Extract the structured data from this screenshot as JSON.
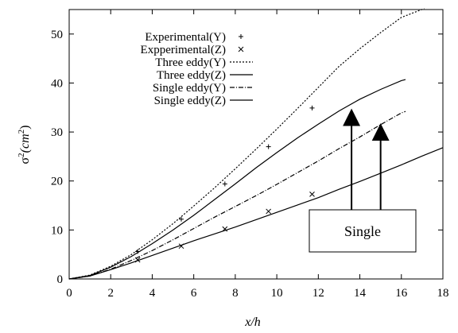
{
  "chart_data": {
    "type": "line",
    "xlabel": "x/h",
    "ylabel": "σ²(cm²)",
    "ylabel_parts": {
      "sigma": "σ",
      "sup1": "2",
      "open": "(cm",
      "sup2": "2",
      "close": ")"
    },
    "xlim": [
      0,
      18
    ],
    "ylim": [
      0,
      55
    ],
    "xticks": [
      0,
      2,
      4,
      6,
      8,
      10,
      12,
      14,
      16,
      18
    ],
    "yticks": [
      0,
      10,
      20,
      30,
      40,
      50
    ],
    "grid": false,
    "legend_position": "top-left",
    "series": [
      {
        "name": "Experimental(Y)",
        "kind": "points",
        "marker": "plus",
        "x": [
          3.3,
          5.4,
          7.5,
          9.6,
          11.7
        ],
        "y": [
          5.6,
          12.2,
          19.4,
          27.0,
          34.9
        ]
      },
      {
        "name": "Expperimental(Z)",
        "kind": "points",
        "marker": "cross",
        "x": [
          3.3,
          5.4,
          7.5,
          9.6,
          11.7
        ],
        "y": [
          3.9,
          6.7,
          10.2,
          13.8,
          17.3
        ]
      },
      {
        "name": "Three eddy(Y)",
        "kind": "line",
        "dash": "2,2",
        "x": [
          0,
          1,
          2,
          3,
          4,
          5,
          6,
          7,
          8,
          9,
          10,
          11,
          12,
          13,
          14,
          15,
          16,
          17.1
        ],
        "y": [
          0,
          0.8,
          2.6,
          5.0,
          8.0,
          11.3,
          14.9,
          18.6,
          22.5,
          26.5,
          30.6,
          34.8,
          39.1,
          43.4,
          47.0,
          50.3,
          53.4,
          55.2
        ]
      },
      {
        "name": "Three eddy(Z)",
        "kind": "line",
        "dash": "",
        "x": [
          0,
          1,
          2,
          3,
          4,
          5,
          6,
          7,
          8,
          9,
          10,
          11,
          12,
          13,
          14,
          15,
          16,
          16.2
        ],
        "y": [
          0,
          0.7,
          2.4,
          4.6,
          7.2,
          10.0,
          13.0,
          16.2,
          19.4,
          22.7,
          25.8,
          28.8,
          31.6,
          34.3,
          36.7,
          38.7,
          40.5,
          40.7
        ]
      },
      {
        "name": "Single eddy(Y)",
        "kind": "line",
        "dash": "6,2,1,2",
        "x": [
          0,
          1,
          2,
          3,
          4,
          5,
          6,
          7,
          8,
          9,
          10,
          11,
          12,
          13,
          14,
          15,
          16,
          16.2
        ],
        "y": [
          0,
          0.6,
          2.0,
          3.8,
          5.8,
          8.0,
          10.3,
          12.6,
          14.8,
          17.0,
          19.3,
          21.7,
          24.1,
          26.6,
          29.0,
          31.5,
          33.9,
          34.2
        ]
      },
      {
        "name": "Single eddy(Z)",
        "kind": "line",
        "dash": "",
        "x": [
          0,
          1,
          2,
          3,
          4,
          5,
          6,
          7,
          8,
          9,
          10,
          11,
          12,
          13,
          14,
          15,
          16,
          17,
          18
        ],
        "y": [
          0,
          0.6,
          1.9,
          3.3,
          4.8,
          6.3,
          7.8,
          9.2,
          10.6,
          12.1,
          13.6,
          15.1,
          16.6,
          18.3,
          19.9,
          21.6,
          23.3,
          25.1,
          26.8
        ]
      }
    ],
    "annotation": {
      "text": "Single",
      "arrows_from_box_to": [
        [
          13.6,
          33
        ],
        [
          15.0,
          30
        ]
      ]
    }
  }
}
